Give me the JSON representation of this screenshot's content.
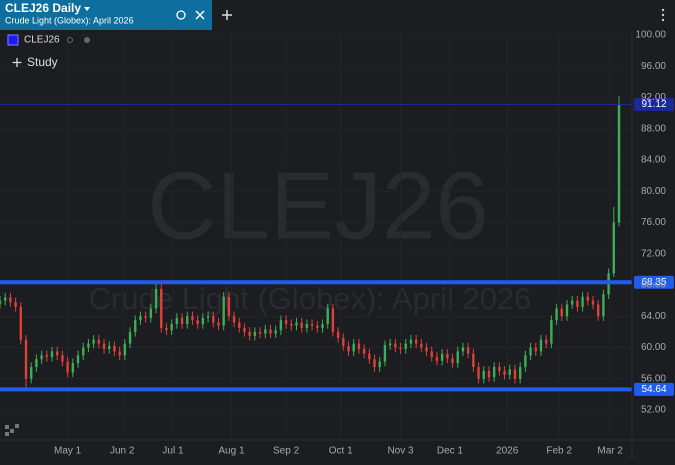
{
  "tab": {
    "title": "CLEJ26 Daily",
    "subtitle": "Crude Light (Globex): April 2026"
  },
  "legend_symbol": "CLEJ26",
  "study_button": "Study",
  "chart_data": {
    "type": "candlestick",
    "watermark": "CLEJ26",
    "watermark_subtitle": "Crude Light (Globex): April 2026",
    "up_color": "#3dae5a",
    "down_color": "#e0403a",
    "x": [
      0,
      2,
      4,
      6,
      8,
      10,
      12,
      14,
      16,
      18,
      20,
      22,
      24,
      26,
      28,
      30,
      32,
      34,
      36,
      38,
      40,
      42,
      44,
      46,
      48,
      50,
      52,
      54,
      56,
      58,
      60,
      62,
      64,
      66,
      68,
      70,
      72,
      74,
      76,
      78,
      80,
      82,
      84,
      86,
      88,
      90,
      92,
      94,
      96,
      98,
      100,
      102,
      104,
      106,
      108,
      110,
      112,
      114,
      116,
      118,
      120,
      122,
      124,
      126,
      128,
      130,
      132,
      134,
      136,
      138,
      140,
      142,
      144,
      146,
      148,
      150,
      152,
      154,
      156,
      158,
      160,
      162,
      164,
      166,
      168,
      170,
      172,
      174,
      176,
      178,
      180,
      182,
      184,
      186,
      188,
      190,
      192,
      194,
      196,
      198,
      200,
      202,
      204,
      206,
      208,
      210,
      212,
      214,
      216,
      218,
      220,
      222,
      224,
      226,
      228,
      230,
      232,
      234,
      236,
      238
    ],
    "open": [
      65.6,
      66,
      66.4,
      65.8,
      65.2,
      61,
      56,
      57.5,
      58.5,
      59,
      58.8,
      59.5,
      59,
      58.2,
      56.8,
      58,
      59,
      60,
      60.5,
      61,
      60.5,
      59.8,
      60.2,
      59.5,
      59,
      60.5,
      62,
      63.5,
      64,
      63.8,
      65,
      67.5,
      62.5,
      62.2,
      63,
      63.8,
      63,
      64,
      63.5,
      63,
      63.8,
      64,
      63.2,
      62.8,
      66.5,
      64,
      63.2,
      62.5,
      62,
      61.5,
      62,
      61.8,
      62.3,
      61.8,
      62.2,
      63.5,
      63,
      62.8,
      63.2,
      62.5,
      63,
      62.8,
      62.5,
      63,
      65,
      62,
      61.2,
      60.2,
      59.5,
      60.5,
      59.8,
      59.2,
      58.5,
      57.5,
      58.2,
      60.3,
      60.5,
      60,
      59.8,
      60.5,
      61,
      60.5,
      60,
      59.5,
      58.8,
      58.3,
      59.2,
      58.6,
      58,
      59.5,
      60,
      59.2,
      57.5,
      56,
      57,
      56.2,
      57.5,
      57,
      56.5,
      57.2,
      56,
      57.5,
      59,
      60,
      59.5,
      61,
      60.5,
      63.5,
      65,
      64,
      65.5,
      66,
      65.2,
      66.5,
      66,
      65.5,
      64,
      66.8,
      69.5,
      76
    ],
    "high": [
      66.6,
      67,
      67,
      66.4,
      65.8,
      61.6,
      58.1,
      59.1,
      59.6,
      59.6,
      60.1,
      60.1,
      59.6,
      58.8,
      58.6,
      59.6,
      60.6,
      61.1,
      61.6,
      61.6,
      61.1,
      60.8,
      60.8,
      60.1,
      61.1,
      62.6,
      64.1,
      64.6,
      64.6,
      65.6,
      68.3,
      68.1,
      63.1,
      63.6,
      64.4,
      64.4,
      64.6,
      64.6,
      64.1,
      64.4,
      64.6,
      64.6,
      63.8,
      67.1,
      67.1,
      64.6,
      63.8,
      63.1,
      62.6,
      62.6,
      62.6,
      62.9,
      62.9,
      62.8,
      64.1,
      64.1,
      63.6,
      63.8,
      63.8,
      63.6,
      63.6,
      63.4,
      63.6,
      65.6,
      65.6,
      62.6,
      61.8,
      60.8,
      61.1,
      61.1,
      60.4,
      59.8,
      59.1,
      58.8,
      60.9,
      61.1,
      61.1,
      60.6,
      61.1,
      61.6,
      61.6,
      61.1,
      60.6,
      60.1,
      59.4,
      59.8,
      59.8,
      59.2,
      60.1,
      60.6,
      60.6,
      59.8,
      58.1,
      57.6,
      57.6,
      58.1,
      58.1,
      57.6,
      57.8,
      57.8,
      58.1,
      59.6,
      60.6,
      60.6,
      61.6,
      61.6,
      64.1,
      65.6,
      65.6,
      66.1,
      66.6,
      66.6,
      67.1,
      67.1,
      66.6,
      66.1,
      67.4,
      70.1,
      78,
      92.2
    ],
    "low": [
      65,
      65.4,
      65.2,
      64.6,
      60.4,
      54.6,
      55.4,
      56.9,
      57.9,
      58.2,
      58.2,
      58.4,
      57.6,
      56.2,
      56.2,
      57.4,
      58.4,
      59.4,
      59.9,
      59.9,
      59.2,
      59.2,
      58.9,
      58.4,
      58.4,
      59.9,
      61.4,
      62.9,
      63.2,
      63.2,
      64.4,
      61.9,
      61.6,
      61.6,
      62.4,
      62.4,
      62.4,
      62.9,
      62.4,
      62.4,
      63.2,
      62.6,
      62.2,
      62.2,
      63.4,
      62.6,
      61.9,
      61.4,
      60.9,
      60.9,
      61.2,
      61.2,
      61.2,
      61.2,
      61.6,
      62.4,
      62.2,
      62.2,
      61.9,
      61.9,
      62.2,
      61.9,
      61.9,
      62.4,
      61.4,
      60.6,
      59.6,
      58.9,
      58.9,
      59.2,
      58.6,
      57.9,
      56.9,
      56.9,
      57.6,
      59.7,
      59.4,
      59.2,
      59.2,
      59.9,
      59.9,
      59.4,
      58.9,
      58.2,
      57.7,
      57.7,
      58,
      57.4,
      57.4,
      58.9,
      58.6,
      56.9,
      55.4,
      55.4,
      55.6,
      55.6,
      56.4,
      55.9,
      55.9,
      55.4,
      55.4,
      56.9,
      58.4,
      58.9,
      58.9,
      59.9,
      59.9,
      62.9,
      63.4,
      63.4,
      64.9,
      64.6,
      64.6,
      65.4,
      64.9,
      63.4,
      63.4,
      66.2,
      69,
      75.5
    ],
    "close": [
      66,
      66.4,
      65.8,
      65.2,
      61,
      56,
      57.5,
      58.5,
      59,
      58.8,
      59.5,
      59,
      58.2,
      56.8,
      58,
      59,
      60,
      60.5,
      61,
      60.5,
      59.8,
      60.2,
      59.5,
      59,
      60.5,
      62,
      63.5,
      64,
      63.8,
      65,
      67.5,
      62.5,
      62.2,
      63,
      63.8,
      63,
      64,
      63.5,
      63,
      63.8,
      64,
      63.2,
      62.8,
      66.5,
      64,
      63.2,
      62.5,
      62,
      61.5,
      62,
      61.8,
      62.3,
      61.8,
      62.2,
      63.5,
      63,
      62.8,
      63.2,
      62.5,
      63,
      62.8,
      62.5,
      63,
      65,
      62,
      61.2,
      60.2,
      59.5,
      60.5,
      59.8,
      59.2,
      58.5,
      57.5,
      58.2,
      60.3,
      60.5,
      60,
      59.8,
      60.5,
      61,
      60.5,
      60,
      59.5,
      58.8,
      58.3,
      59.2,
      58.6,
      58,
      59.5,
      60,
      59.2,
      57.5,
      56,
      57,
      56.2,
      57.5,
      57,
      56.5,
      57.2,
      56,
      57.5,
      59,
      60,
      59.5,
      61,
      60.5,
      63.5,
      65,
      64,
      65.5,
      66,
      65.2,
      66.5,
      66,
      65.5,
      64,
      66.8,
      69.5,
      76,
      91.12
    ],
    "xlim": [
      0,
      243
    ],
    "ylim": [
      52,
      100
    ],
    "yticks": [
      {
        "value": 52,
        "label": "52.00"
      },
      {
        "value": 56,
        "label": "56.00"
      },
      {
        "value": 60,
        "label": "60.00"
      },
      {
        "value": 64,
        "label": "64.00"
      },
      {
        "value": 68,
        "label": "68.00"
      },
      {
        "value": 72,
        "label": "72.00"
      },
      {
        "value": 76,
        "label": "76.00"
      },
      {
        "value": 80,
        "label": "80.00"
      },
      {
        "value": 84,
        "label": "84.00"
      },
      {
        "value": 88,
        "label": "88.00"
      },
      {
        "value": 92,
        "label": "92.00"
      },
      {
        "value": 96,
        "label": "96.00"
      },
      {
        "value": 100,
        "label": "100.00"
      }
    ],
    "xticks": [
      {
        "value": 26,
        "label": "May 1"
      },
      {
        "value": 47,
        "label": "Jun 2"
      },
      {
        "value": 66.5,
        "label": "Jul 1"
      },
      {
        "value": 89,
        "label": "Aug 1"
      },
      {
        "value": 110,
        "label": "Sep 2"
      },
      {
        "value": 131,
        "label": "Oct 1"
      },
      {
        "value": 154,
        "label": "Nov 3"
      },
      {
        "value": 173,
        "label": "Dec 1"
      },
      {
        "value": 195,
        "label": "2026"
      },
      {
        "value": 215,
        "label": "Feb 2"
      },
      {
        "value": 234.6,
        "label": "Mar 2"
      }
    ],
    "hlines": [
      {
        "value": 91.12,
        "color": "#1b2a9a",
        "line_width": 1
      },
      {
        "value": 68.35,
        "color": "#1f5cf0",
        "line_width": 4
      },
      {
        "value": 54.64,
        "color": "#1f5cf0",
        "line_width": 4
      }
    ]
  }
}
